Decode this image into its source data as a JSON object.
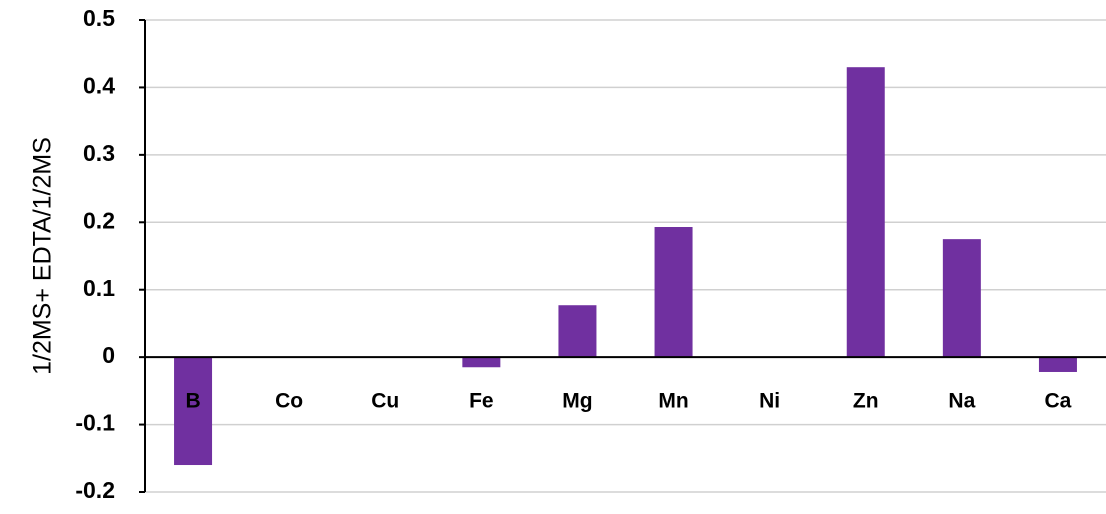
{
  "chart_data": {
    "type": "bar",
    "y_label": "1/2MS+ EDTA/1/2MS",
    "categories": [
      "B",
      "Co",
      "Cu",
      "Fe",
      "Mg",
      "Mn",
      "Ni",
      "Zn",
      "Na",
      "Ca"
    ],
    "values": [
      -0.16,
      0,
      0,
      -0.015,
      0.077,
      0.193,
      0,
      0.43,
      0.175,
      -0.022
    ],
    "color": "#7030a0",
    "ylim": [
      -0.2,
      0.5
    ],
    "yticks": [
      -0.2,
      -0.1,
      0,
      0.1,
      0.2,
      0.3,
      0.4,
      0.5
    ],
    "grid": true
  }
}
